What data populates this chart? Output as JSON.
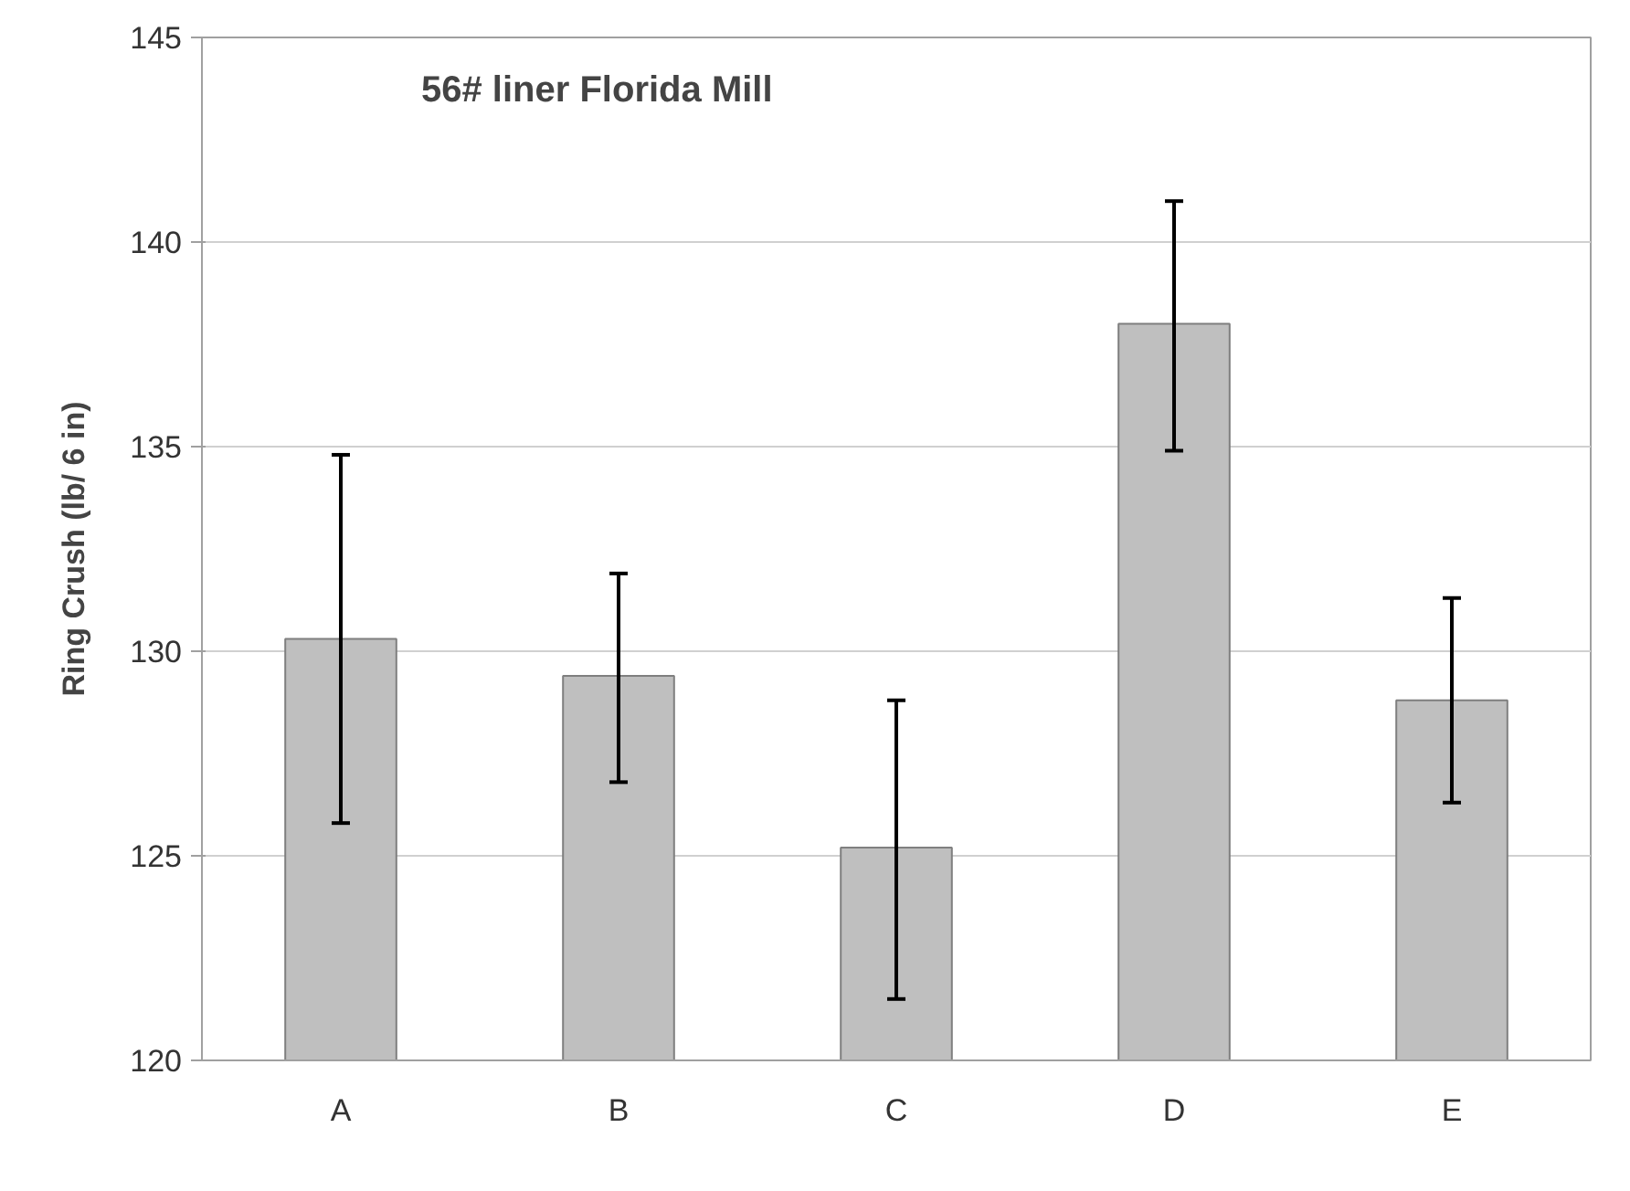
{
  "chart_data": {
    "type": "bar",
    "title": "56# liner Florida Mill",
    "ylabel": "Ring Crush (lb/ 6 in)",
    "categories": [
      "A",
      "B",
      "C",
      "D",
      "E"
    ],
    "values": [
      130.3,
      129.4,
      125.2,
      138.0,
      128.8
    ],
    "errors": [
      [
        125.8,
        134.8
      ],
      [
        126.8,
        131.9
      ],
      [
        121.5,
        128.8
      ],
      [
        134.9,
        141.0
      ],
      [
        126.3,
        131.3
      ]
    ],
    "color": "#bfbfbf",
    "ylim": [
      120,
      145
    ],
    "yticks": [
      120,
      125,
      130,
      135,
      140,
      145
    ],
    "grid": "y"
  }
}
